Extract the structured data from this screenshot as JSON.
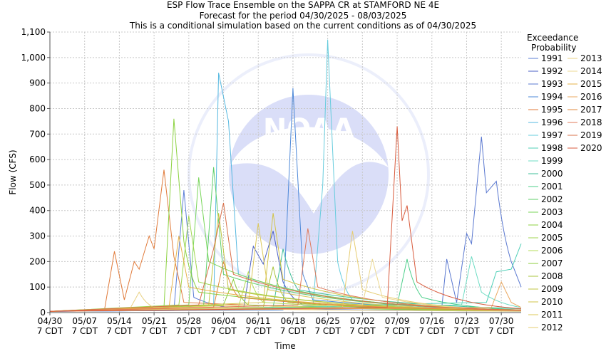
{
  "chart_data": {
    "type": "line",
    "title": [
      "ESP Flow Trace Ensemble on the SAPPA CR at STAMFORD NE 4E",
      "Forecast for the period 04/30/2025 - 08/03/2025",
      "This is a conditional simulation based on the current conditions as of 04/30/2025"
    ],
    "xlabel": "Time",
    "ylabel": "Flow (CFS)",
    "x_start": "2025-04-30",
    "x_end": "2025-08-03",
    "ylim": [
      0,
      1100
    ],
    "yticks": [
      0,
      100,
      200,
      300,
      400,
      500,
      600,
      700,
      800,
      900,
      1000,
      1100
    ],
    "ytick_labels": [
      "0",
      "100",
      "200",
      "300",
      "400",
      "500",
      "600",
      "700",
      "800",
      "900",
      "1,000",
      "1,100"
    ],
    "xticks": [
      {
        "date": "2025-04-30",
        "label": [
          "04/30",
          "7 CDT"
        ]
      },
      {
        "date": "2025-05-07",
        "label": [
          "05/07",
          "7 CDT"
        ]
      },
      {
        "date": "2025-05-14",
        "label": [
          "05/14",
          "7 CDT"
        ]
      },
      {
        "date": "2025-05-21",
        "label": [
          "05/21",
          "7 CDT"
        ]
      },
      {
        "date": "2025-05-28",
        "label": [
          "05/28",
          "7 CDT"
        ]
      },
      {
        "date": "2025-06-04",
        "label": [
          "06/04",
          "7 CDT"
        ]
      },
      {
        "date": "2025-06-11",
        "label": [
          "06/11",
          "7 CDT"
        ]
      },
      {
        "date": "2025-06-18",
        "label": [
          "06/18",
          "7 CDT"
        ]
      },
      {
        "date": "2025-06-25",
        "label": [
          "06/25",
          "7 CDT"
        ]
      },
      {
        "date": "2025-07-02",
        "label": [
          "07/02",
          "7 CDT"
        ]
      },
      {
        "date": "2025-07-09",
        "label": [
          "07/09",
          "7 CDT"
        ]
      },
      {
        "date": "2025-07-16",
        "label": [
          "07/16",
          "7 CDT"
        ]
      },
      {
        "date": "2025-07-23",
        "label": [
          "07/23",
          "7 CDT"
        ]
      },
      {
        "date": "2025-07-30",
        "label": [
          "07/30",
          "7 CDT"
        ]
      }
    ],
    "grid": true,
    "legend": {
      "title": [
        "Exceedance",
        "Probability"
      ],
      "placement": "right"
    },
    "series": [
      {
        "name": "1991",
        "color": "#5b7fd6",
        "points": [
          [
            "2025-04-30",
            5
          ],
          [
            "2025-05-25",
            8
          ],
          [
            "2025-05-27",
            480
          ],
          [
            "2025-05-29",
            60
          ],
          [
            "2025-06-05",
            20
          ],
          [
            "2025-08-03",
            5
          ]
        ]
      },
      {
        "name": "1992",
        "color": "#4a5fc4",
        "points": [
          [
            "2025-04-30",
            5
          ],
          [
            "2025-06-08",
            10
          ],
          [
            "2025-06-10",
            260
          ],
          [
            "2025-06-12",
            190
          ],
          [
            "2025-06-14",
            320
          ],
          [
            "2025-06-16",
            120
          ],
          [
            "2025-06-20",
            30
          ],
          [
            "2025-08-03",
            8
          ]
        ]
      },
      {
        "name": "1993",
        "color": "#5a78d0",
        "points": [
          [
            "2025-04-30",
            5
          ],
          [
            "2025-07-18",
            20
          ],
          [
            "2025-07-19",
            210
          ],
          [
            "2025-07-21",
            40
          ],
          [
            "2025-07-23",
            310
          ],
          [
            "2025-07-24",
            270
          ],
          [
            "2025-07-26",
            690
          ],
          [
            "2025-07-27",
            470
          ],
          [
            "2025-07-29",
            515
          ],
          [
            "2025-08-01",
            200
          ],
          [
            "2025-08-03",
            100
          ]
        ]
      },
      {
        "name": "1994",
        "color": "#4d88d8",
        "points": [
          [
            "2025-04-30",
            5
          ],
          [
            "2025-06-16",
            10
          ],
          [
            "2025-06-18",
            880
          ],
          [
            "2025-06-20",
            150
          ],
          [
            "2025-06-22",
            50
          ],
          [
            "2025-08-03",
            10
          ]
        ]
      },
      {
        "name": "1995",
        "color": "#e07a3a",
        "points": [
          [
            "2025-04-30",
            5
          ],
          [
            "2025-05-11",
            10
          ],
          [
            "2025-05-13",
            240
          ],
          [
            "2025-05-15",
            50
          ],
          [
            "2025-05-17",
            200
          ],
          [
            "2025-05-18",
            170
          ],
          [
            "2025-05-20",
            300
          ],
          [
            "2025-05-21",
            250
          ],
          [
            "2025-05-23",
            560
          ],
          [
            "2025-05-25",
            220
          ],
          [
            "2025-05-27",
            40
          ],
          [
            "2025-08-03",
            8
          ]
        ]
      },
      {
        "name": "1996",
        "color": "#55b8e0",
        "points": [
          [
            "2025-04-30",
            5
          ],
          [
            "2025-06-02",
            20
          ],
          [
            "2025-06-03",
            940
          ],
          [
            "2025-06-05",
            750
          ],
          [
            "2025-06-07",
            150
          ],
          [
            "2025-08-03",
            10
          ]
        ]
      },
      {
        "name": "1997",
        "color": "#66ccdd",
        "points": [
          [
            "2025-04-30",
            5
          ],
          [
            "2025-06-22",
            20
          ],
          [
            "2025-06-24",
            500
          ],
          [
            "2025-06-25",
            1070
          ],
          [
            "2025-06-27",
            200
          ],
          [
            "2025-06-30",
            50
          ],
          [
            "2025-08-03",
            10
          ]
        ]
      },
      {
        "name": "1998",
        "color": "#4fcfb7",
        "points": [
          [
            "2025-04-30",
            5
          ],
          [
            "2025-07-27",
            40
          ],
          [
            "2025-07-29",
            160
          ],
          [
            "2025-08-01",
            170
          ],
          [
            "2025-08-03",
            270
          ]
        ]
      },
      {
        "name": "1999",
        "color": "#6edcc4",
        "points": [
          [
            "2025-04-30",
            5
          ],
          [
            "2025-07-22",
            30
          ],
          [
            "2025-07-24",
            220
          ],
          [
            "2025-07-26",
            80
          ],
          [
            "2025-08-03",
            20
          ]
        ]
      },
      {
        "name": "2000",
        "color": "#3fbf9a",
        "points": [
          [
            "2025-04-30",
            5
          ],
          [
            "2025-06-14",
            20
          ],
          [
            "2025-06-16",
            250
          ],
          [
            "2025-06-19",
            90
          ],
          [
            "2025-08-03",
            15
          ]
        ]
      },
      {
        "name": "2001",
        "color": "#4ccf8a",
        "points": [
          [
            "2025-04-30",
            5
          ],
          [
            "2025-07-09",
            30
          ],
          [
            "2025-07-11",
            210
          ],
          [
            "2025-07-14",
            60
          ],
          [
            "2025-08-03",
            10
          ]
        ]
      },
      {
        "name": "2002",
        "color": "#5fcf6a",
        "points": [
          [
            "2025-04-30",
            5
          ],
          [
            "2025-05-31",
            30
          ],
          [
            "2025-06-02",
            570
          ],
          [
            "2025-06-04",
            150
          ],
          [
            "2025-08-03",
            10
          ]
        ]
      },
      {
        "name": "2003",
        "color": "#78d65a",
        "points": [
          [
            "2025-04-30",
            5
          ],
          [
            "2025-05-28",
            30
          ],
          [
            "2025-05-30",
            530
          ],
          [
            "2025-06-01",
            200
          ],
          [
            "2025-08-03",
            10
          ]
        ]
      },
      {
        "name": "2004",
        "color": "#8cd240",
        "points": [
          [
            "2025-04-30",
            5
          ],
          [
            "2025-05-23",
            20
          ],
          [
            "2025-05-25",
            760
          ],
          [
            "2025-05-27",
            280
          ],
          [
            "2025-05-30",
            80
          ],
          [
            "2025-08-03",
            10
          ]
        ]
      },
      {
        "name": "2005",
        "color": "#a0d650",
        "points": [
          [
            "2025-04-30",
            5
          ],
          [
            "2025-05-26",
            30
          ],
          [
            "2025-05-28",
            380
          ],
          [
            "2025-05-30",
            120
          ],
          [
            "2025-08-03",
            8
          ]
        ]
      },
      {
        "name": "2006",
        "color": "#b4dc5a",
        "points": [
          [
            "2025-04-30",
            5
          ],
          [
            "2025-06-07",
            20
          ],
          [
            "2025-06-09",
            160
          ],
          [
            "2025-06-12",
            40
          ],
          [
            "2025-08-03",
            8
          ]
        ]
      },
      {
        "name": "2007",
        "color": "#8ccc3c",
        "points": [
          [
            "2025-04-30",
            5
          ],
          [
            "2025-06-04",
            30
          ],
          [
            "2025-06-06",
            130
          ],
          [
            "2025-06-09",
            30
          ],
          [
            "2025-08-03",
            6
          ]
        ]
      },
      {
        "name": "2008",
        "color": "#a8c43c",
        "points": [
          [
            "2025-04-30",
            5
          ],
          [
            "2025-06-12",
            20
          ],
          [
            "2025-06-14",
            180
          ],
          [
            "2025-06-17",
            40
          ],
          [
            "2025-08-03",
            6
          ]
        ]
      },
      {
        "name": "2009",
        "color": "#c0c440",
        "points": [
          [
            "2025-04-30",
            5
          ],
          [
            "2025-06-01",
            30
          ],
          [
            "2025-06-03",
            390
          ],
          [
            "2025-06-05",
            90
          ],
          [
            "2025-08-03",
            8
          ]
        ]
      },
      {
        "name": "2010",
        "color": "#d2c448",
        "points": [
          [
            "2025-04-30",
            5
          ],
          [
            "2025-06-12",
            40
          ],
          [
            "2025-06-14",
            390
          ],
          [
            "2025-06-16",
            130
          ],
          [
            "2025-08-03",
            10
          ]
        ]
      },
      {
        "name": "2011",
        "color": "#dcc85a",
        "points": [
          [
            "2025-04-30",
            5
          ],
          [
            "2025-06-09",
            30
          ],
          [
            "2025-06-11",
            350
          ],
          [
            "2025-06-13",
            90
          ],
          [
            "2025-08-03",
            8
          ]
        ]
      },
      {
        "name": "2012",
        "color": "#e6cc70",
        "points": [
          [
            "2025-04-30",
            5
          ],
          [
            "2025-06-28",
            20
          ],
          [
            "2025-06-30",
            320
          ],
          [
            "2025-07-02",
            90
          ],
          [
            "2025-08-03",
            8
          ]
        ]
      },
      {
        "name": "2013",
        "color": "#e8d080",
        "points": [
          [
            "2025-04-30",
            5
          ],
          [
            "2025-05-16",
            10
          ],
          [
            "2025-05-18",
            80
          ],
          [
            "2025-05-21",
            20
          ],
          [
            "2025-08-03",
            5
          ]
        ]
      },
      {
        "name": "2014",
        "color": "#ecd890",
        "points": [
          [
            "2025-04-30",
            5
          ],
          [
            "2025-07-02",
            30
          ],
          [
            "2025-07-04",
            210
          ],
          [
            "2025-07-06",
            60
          ],
          [
            "2025-08-03",
            8
          ]
        ]
      },
      {
        "name": "2015",
        "color": "#e6b24a",
        "points": [
          [
            "2025-04-30",
            5
          ],
          [
            "2025-05-24",
            20
          ],
          [
            "2025-05-26",
            300
          ],
          [
            "2025-05-28",
            100
          ],
          [
            "2025-08-03",
            8
          ]
        ]
      },
      {
        "name": "2016",
        "color": "#eba860",
        "points": [
          [
            "2025-04-30",
            5
          ],
          [
            "2025-07-28",
            20
          ],
          [
            "2025-07-30",
            120
          ],
          [
            "2025-08-01",
            40
          ],
          [
            "2025-08-03",
            20
          ]
        ]
      },
      {
        "name": "2017",
        "color": "#e0883c",
        "points": [
          [
            "2025-04-30",
            5
          ],
          [
            "2025-06-02",
            20
          ],
          [
            "2025-06-04",
            200
          ],
          [
            "2025-06-07",
            60
          ],
          [
            "2025-08-03",
            8
          ]
        ]
      },
      {
        "name": "2018",
        "color": "#e07a5a",
        "points": [
          [
            "2025-04-30",
            5
          ],
          [
            "2025-06-19",
            30
          ],
          [
            "2025-06-21",
            330
          ],
          [
            "2025-06-23",
            100
          ],
          [
            "2025-08-03",
            8
          ]
        ]
      },
      {
        "name": "2019",
        "color": "#d8704a",
        "points": [
          [
            "2025-04-30",
            5
          ],
          [
            "2025-05-30",
            30
          ],
          [
            "2025-06-02",
            250
          ],
          [
            "2025-06-04",
            430
          ],
          [
            "2025-06-06",
            150
          ],
          [
            "2025-08-03",
            10
          ]
        ]
      },
      {
        "name": "2020",
        "color": "#d85a3c",
        "points": [
          [
            "2025-04-30",
            5
          ],
          [
            "2025-07-07",
            20
          ],
          [
            "2025-07-09",
            730
          ],
          [
            "2025-07-10",
            360
          ],
          [
            "2025-07-11",
            420
          ],
          [
            "2025-07-13",
            120
          ],
          [
            "2025-08-03",
            15
          ]
        ]
      }
    ]
  }
}
